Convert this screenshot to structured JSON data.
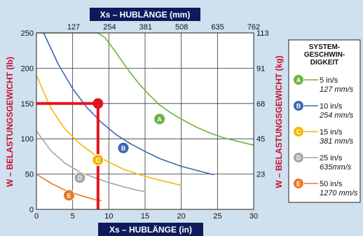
{
  "chart_data": {
    "type": "line",
    "top_axis_title": "Xs – HUBLÄNGE (mm)",
    "bottom_axis_title": "Xs – HUBLÄNGE (in)",
    "left_axis_title": "W – BELASTUNGSGEWICHT (lb)",
    "right_axis_title": "W – BELASTUNGSGEWICHT (kg)",
    "xlim": [
      0,
      30
    ],
    "ylim": [
      0,
      250
    ],
    "x_ticks": [
      "0",
      "5",
      "10",
      "15",
      "20",
      "25",
      "30"
    ],
    "y_ticks_left": [
      "0",
      "50",
      "100",
      "150",
      "200",
      "250"
    ],
    "top_ticks": [
      "127",
      "254",
      "381",
      "508",
      "635",
      "762"
    ],
    "right_ticks": [
      "23",
      "45",
      "68",
      "91",
      "113"
    ],
    "grid": true,
    "legend_title_lines": [
      "SYSTEM-",
      "GESCHWIN-",
      "DIGKEIT"
    ],
    "series": [
      {
        "marker": "A",
        "label_main": "5 in/s",
        "label_sub": "127 mm/s",
        "color": "#6db33f",
        "marker_at": [
          17,
          128
        ],
        "points": [
          [
            0,
            250
          ],
          [
            8.5,
            250
          ],
          [
            9.5,
            243
          ],
          [
            11,
            222
          ],
          [
            12.5,
            200
          ],
          [
            14,
            180
          ],
          [
            15.5,
            163
          ],
          [
            17,
            148
          ],
          [
            18.5,
            137
          ],
          [
            20,
            128
          ],
          [
            22,
            117
          ],
          [
            24,
            108
          ],
          [
            26,
            101
          ],
          [
            28,
            96
          ],
          [
            30,
            91
          ]
        ]
      },
      {
        "marker": "B",
        "label_main": "10 in/s",
        "label_sub": "254 mm/s",
        "color": "#3a66b0",
        "marker_at": [
          12,
          87
        ],
        "points": [
          [
            1,
            250
          ],
          [
            3,
            206
          ],
          [
            5,
            171
          ],
          [
            7,
            144
          ],
          [
            9,
            123
          ],
          [
            11,
            106
          ],
          [
            13,
            93
          ],
          [
            15,
            82
          ],
          [
            17,
            72
          ],
          [
            20,
            61
          ],
          [
            23,
            53
          ],
          [
            24.5,
            49
          ]
        ]
      },
      {
        "marker": "C",
        "label_main": "15 in/s",
        "label_sub": "381 mm/s",
        "color": "#f5b800",
        "marker_at": [
          8.5,
          70
        ],
        "points": [
          [
            0,
            190
          ],
          [
            2,
            143
          ],
          [
            4,
            113
          ],
          [
            6,
            93
          ],
          [
            8,
            78
          ],
          [
            10,
            67
          ],
          [
            12,
            57
          ],
          [
            14,
            50
          ],
          [
            16,
            44
          ],
          [
            18,
            39
          ],
          [
            20,
            34
          ]
        ]
      },
      {
        "marker": "D",
        "label_main": "25 in/s",
        "label_sub": "635mm/s",
        "color": "#a6a6a6",
        "marker_at": [
          6,
          45
        ],
        "points": [
          [
            0,
            111
          ],
          [
            2,
            83
          ],
          [
            4,
            65
          ],
          [
            6,
            53
          ],
          [
            8,
            45
          ],
          [
            10,
            38
          ],
          [
            12,
            32
          ],
          [
            14,
            27
          ],
          [
            15,
            25
          ]
        ]
      },
      {
        "marker": "E",
        "label_main": "50 in/s",
        "label_sub": "1270 mm/s",
        "color": "#e87722",
        "marker_at": [
          4.5,
          20
        ],
        "points": [
          [
            0,
            50
          ],
          [
            2,
            37
          ],
          [
            4,
            27
          ],
          [
            6,
            20
          ],
          [
            8,
            14
          ],
          [
            9,
            12
          ]
        ]
      }
    ],
    "highlight": {
      "color": "#e3141d",
      "point": [
        8.5,
        150
      ]
    }
  }
}
